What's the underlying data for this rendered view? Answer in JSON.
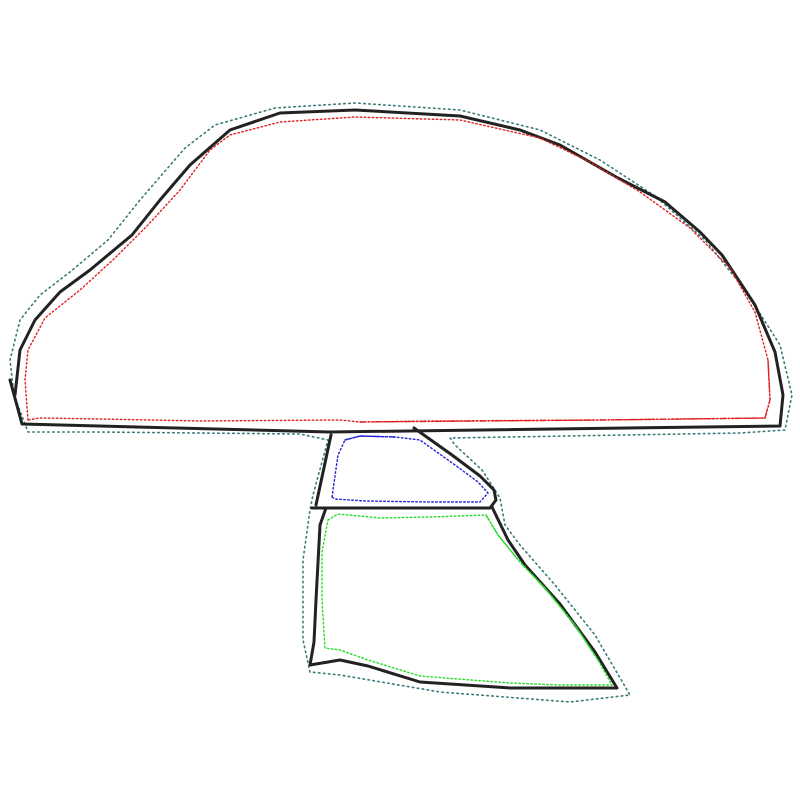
{
  "diagram": {
    "subject": "",
    "colors": {
      "outline": "#222222",
      "halo": "#3a7a78",
      "cap": "#e02020",
      "ring": "#1f1fd6",
      "stem": "#22dd22"
    },
    "parts": [
      {
        "id": "cap",
        "label": "",
        "color_key": "cap"
      },
      {
        "id": "ring",
        "label": "",
        "color_key": "ring"
      },
      {
        "id": "stem",
        "label": "",
        "color_key": "stem"
      }
    ]
  }
}
